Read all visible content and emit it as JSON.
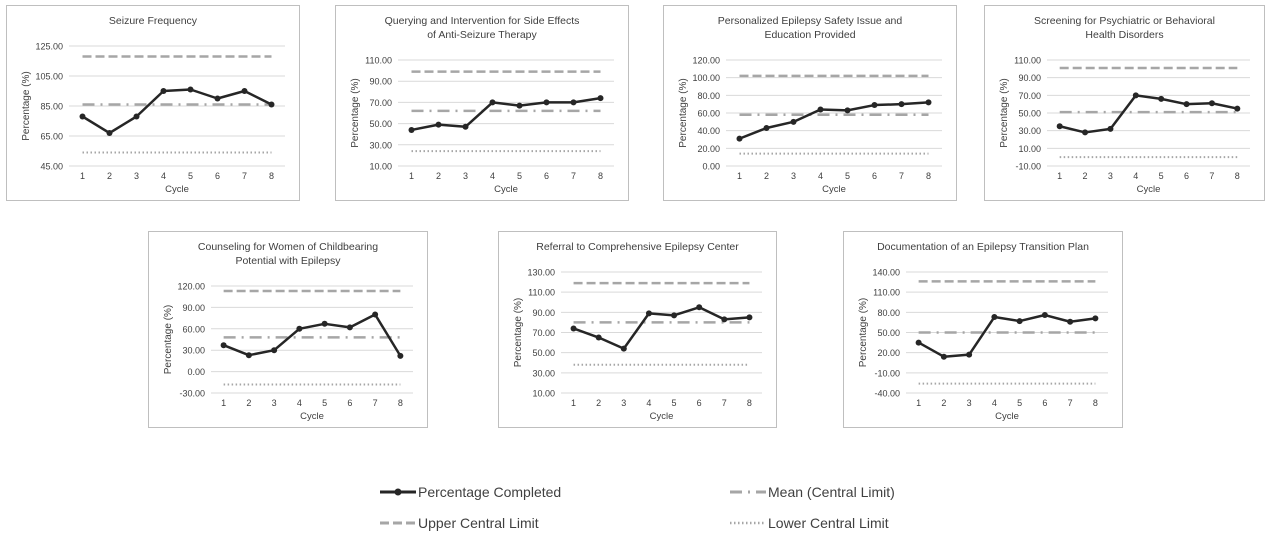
{
  "colors": {
    "completed": "#262626",
    "mean": "#a6a6a6",
    "upper": "#a6a6a6",
    "lower": "#a6a6a6",
    "grid": "#d9d9d9",
    "text": "#404040"
  },
  "legend": {
    "completed": "Percentage Completed",
    "mean": "Mean (Central Limit)",
    "upper": "Upper Central Limit",
    "lower": "Lower Central Limit"
  },
  "chart_data": [
    {
      "type": "line",
      "title": "Seizure Frequency",
      "title_lines": [
        "Seizure Frequency"
      ],
      "xlabel": "Cycle",
      "ylabel": "Percentage (%)",
      "categories": [
        "1",
        "2",
        "3",
        "4",
        "5",
        "6",
        "7",
        "8"
      ],
      "yticks": [
        "45.00",
        "65.00",
        "85.00",
        "105.00",
        "125.00"
      ],
      "ylim": [
        45,
        125
      ],
      "grid": true,
      "series": [
        {
          "name": "Percentage Completed",
          "values": [
            78,
            67,
            78,
            95,
            96,
            90,
            95,
            86
          ]
        },
        {
          "name": "Upper Central Limit",
          "values": [
            118,
            118,
            118,
            118,
            118,
            118,
            118,
            118
          ]
        },
        {
          "name": "Mean (Central Limit)",
          "values": [
            86,
            86,
            86,
            86,
            86,
            86,
            86,
            86
          ]
        },
        {
          "name": "Lower Central Limit",
          "values": [
            54,
            54,
            54,
            54,
            54,
            54,
            54,
            54
          ]
        }
      ]
    },
    {
      "type": "line",
      "title": "Querying and Intervention for Side Effects of Anti-Seizure Therapy",
      "title_lines": [
        "Querying and Intervention for Side Effects",
        "of Anti-Seizure Therapy"
      ],
      "xlabel": "Cycle",
      "ylabel": "Percentage (%)",
      "categories": [
        "1",
        "2",
        "3",
        "4",
        "5",
        "6",
        "7",
        "8"
      ],
      "yticks": [
        "10.00",
        "30.00",
        "50.00",
        "70.00",
        "90.00",
        "110.00"
      ],
      "ylim": [
        10,
        110
      ],
      "grid": true,
      "series": [
        {
          "name": "Percentage Completed",
          "values": [
            44,
            49,
            47,
            70,
            67,
            70,
            70,
            74
          ]
        },
        {
          "name": "Upper Central Limit",
          "values": [
            99,
            99,
            99,
            99,
            99,
            99,
            99,
            99
          ]
        },
        {
          "name": "Mean (Central Limit)",
          "values": [
            62,
            62,
            62,
            62,
            62,
            62,
            62,
            62
          ]
        },
        {
          "name": "Lower Central Limit",
          "values": [
            24,
            24,
            24,
            24,
            24,
            24,
            24,
            24
          ]
        }
      ]
    },
    {
      "type": "line",
      "title": "Personalized Epilepsy Safety Issue and Education Provided",
      "title_lines": [
        "Personalized Epilepsy Safety Issue and",
        "Education Provided"
      ],
      "xlabel": "Cycle",
      "ylabel": "Percentage (%)",
      "categories": [
        "1",
        "2",
        "3",
        "4",
        "5",
        "6",
        "7",
        "8"
      ],
      "yticks": [
        "0.00",
        "20.00",
        "40.00",
        "60.00",
        "80.00",
        "100.00",
        "120.00"
      ],
      "ylim": [
        0,
        120
      ],
      "grid": true,
      "series": [
        {
          "name": "Percentage Completed",
          "values": [
            31,
            43,
            50,
            64,
            63,
            69,
            70,
            72
          ]
        },
        {
          "name": "Upper Central Limit",
          "values": [
            102,
            102,
            102,
            102,
            102,
            102,
            102,
            102
          ]
        },
        {
          "name": "Mean (Central Limit)",
          "values": [
            58,
            58,
            58,
            58,
            58,
            58,
            58,
            58
          ]
        },
        {
          "name": "Lower Central Limit",
          "values": [
            14,
            14,
            14,
            14,
            14,
            14,
            14,
            14
          ]
        }
      ]
    },
    {
      "type": "line",
      "title": "Screening for Psychiatric or Behavioral Health Disorders",
      "title_lines": [
        "Screening for Psychiatric or Behavioral",
        "Health Disorders"
      ],
      "xlabel": "Cycle",
      "ylabel": "Percentage (%)",
      "categories": [
        "1",
        "2",
        "3",
        "4",
        "5",
        "6",
        "7",
        "8"
      ],
      "yticks": [
        "-10.00",
        "10.00",
        "30.00",
        "50.00",
        "70.00",
        "90.00",
        "110.00"
      ],
      "ylim": [
        -10,
        110
      ],
      "grid": true,
      "series": [
        {
          "name": "Percentage Completed",
          "values": [
            35,
            28,
            32,
            70,
            66,
            60,
            61,
            55
          ]
        },
        {
          "name": "Upper Central Limit",
          "values": [
            101,
            101,
            101,
            101,
            101,
            101,
            101,
            101
          ]
        },
        {
          "name": "Mean (Central Limit)",
          "values": [
            51,
            51,
            51,
            51,
            51,
            51,
            51,
            51
          ]
        },
        {
          "name": "Lower Central Limit",
          "values": [
            0,
            0,
            0,
            0,
            0,
            0,
            0,
            0
          ]
        }
      ]
    },
    {
      "type": "line",
      "title": "Counseling for Women of Childbearing Potential with Epilepsy",
      "title_lines": [
        "Counseling for Women of Childbearing",
        "Potential with Epilepsy"
      ],
      "xlabel": "Cycle",
      "ylabel": "Percentage (%)",
      "categories": [
        "1",
        "2",
        "3",
        "4",
        "5",
        "6",
        "7",
        "8"
      ],
      "yticks": [
        "-30.00",
        "0.00",
        "30.00",
        "60.00",
        "90.00",
        "120.00"
      ],
      "ylim": [
        -30,
        120
      ],
      "grid": true,
      "series": [
        {
          "name": "Percentage Completed",
          "values": [
            37,
            23,
            30,
            60,
            67,
            62,
            80,
            22
          ]
        },
        {
          "name": "Upper Central Limit",
          "values": [
            113,
            113,
            113,
            113,
            113,
            113,
            113,
            113
          ]
        },
        {
          "name": "Mean (Central Limit)",
          "values": [
            48,
            48,
            48,
            48,
            48,
            48,
            48,
            48
          ]
        },
        {
          "name": "Lower Central Limit",
          "values": [
            -18,
            -18,
            -18,
            -18,
            -18,
            -18,
            -18,
            -18
          ]
        }
      ]
    },
    {
      "type": "line",
      "title": "Referral to Comprehensive Epilepsy Center",
      "title_lines": [
        "Referral to Comprehensive Epilepsy Center"
      ],
      "xlabel": "Cycle",
      "ylabel": "Percentage (%)",
      "categories": [
        "1",
        "2",
        "3",
        "4",
        "5",
        "6",
        "7",
        "8"
      ],
      "yticks": [
        "10.00",
        "30.00",
        "50.00",
        "70.00",
        "90.00",
        "110.00",
        "130.00"
      ],
      "ylim": [
        10,
        130
      ],
      "grid": true,
      "series": [
        {
          "name": "Percentage Completed",
          "values": [
            74,
            65,
            54,
            89,
            87,
            95,
            83,
            85
          ]
        },
        {
          "name": "Upper Central Limit",
          "values": [
            119,
            119,
            119,
            119,
            119,
            119,
            119,
            119
          ]
        },
        {
          "name": "Mean (Central Limit)",
          "values": [
            80,
            80,
            80,
            80,
            80,
            80,
            80,
            80
          ]
        },
        {
          "name": "Lower Central Limit",
          "values": [
            38,
            38,
            38,
            38,
            38,
            38,
            38,
            38
          ]
        }
      ]
    },
    {
      "type": "line",
      "title": "Documentation of an Epilepsy Transition Plan",
      "title_lines": [
        "Documentation of an Epilepsy Transition Plan"
      ],
      "xlabel": "Cycle",
      "ylabel": "Percentage (%)",
      "categories": [
        "1",
        "2",
        "3",
        "4",
        "5",
        "6",
        "7",
        "8"
      ],
      "yticks": [
        "-40.00",
        "-10.00",
        "20.00",
        "50.00",
        "80.00",
        "110.00",
        "140.00"
      ],
      "ylim": [
        -40,
        140
      ],
      "grid": true,
      "series": [
        {
          "name": "Percentage Completed",
          "values": [
            35,
            14,
            17,
            73,
            67,
            76,
            66,
            71
          ]
        },
        {
          "name": "Upper Central Limit",
          "values": [
            126,
            126,
            126,
            126,
            126,
            126,
            126,
            126
          ]
        },
        {
          "name": "Mean (Central Limit)",
          "values": [
            50,
            50,
            50,
            50,
            50,
            50,
            50,
            50
          ]
        },
        {
          "name": "Lower Central Limit",
          "values": [
            -26,
            -26,
            -26,
            -26,
            -26,
            -26,
            -26,
            -26
          ]
        }
      ]
    }
  ]
}
